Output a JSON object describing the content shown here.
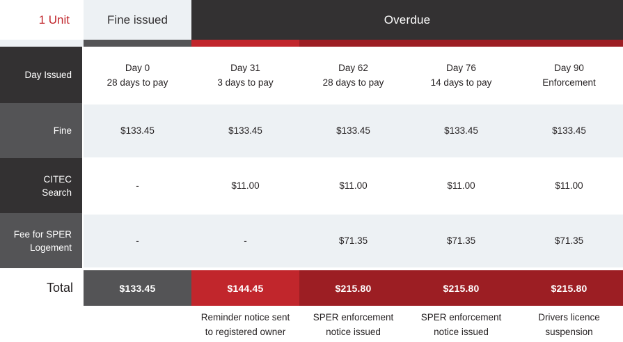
{
  "header": {
    "unit_label": "1 Unit",
    "fine_issued_label": "Fine issued",
    "overdue_label": "Overdue"
  },
  "row_headers": {
    "day": "Day Issued",
    "fine": "Fine",
    "citec": [
      "CITEC",
      "Search"
    ],
    "sper": [
      "Fee for SPER",
      "Logement"
    ],
    "total": "Total"
  },
  "columns": [
    {
      "day": "Day 0",
      "terms": "28 days to pay",
      "fine": "$133.45",
      "citec": "-",
      "sper": "-",
      "total": "$133.45"
    },
    {
      "day": "Day 31",
      "terms": "3 days to pay",
      "fine": "$133.45",
      "citec": "$11.00",
      "sper": "-",
      "total": "$144.45"
    },
    {
      "day": "Day 62",
      "terms": "28 days to pay",
      "fine": "$133.45",
      "citec": "$11.00",
      "sper": "$71.35",
      "total": "$215.80"
    },
    {
      "day": "Day 76",
      "terms": "14 days to pay",
      "fine": "$133.45",
      "citec": "$11.00",
      "sper": "$71.35",
      "total": "$215.80"
    },
    {
      "day": "Day 90",
      "terms": "Enforcement",
      "fine": "$133.45",
      "citec": "$11.00",
      "sper": "$71.35",
      "total": "$215.80"
    }
  ],
  "notes": [
    [
      "Reminder notice sent",
      "to registered owner"
    ],
    [
      "SPER enforcement",
      "notice issued"
    ],
    [
      "SPER enforcement",
      "notice issued"
    ],
    [
      "Drivers licence",
      "suspension"
    ]
  ],
  "colors": {
    "charcoal": "#333132",
    "mid_gray": "#545456",
    "light_gray": "#edf1f4",
    "red": "#c1262c",
    "dark_red": "#9c1e23",
    "text": "#231f20"
  },
  "chart_data": {
    "type": "table",
    "title": "1 Unit",
    "group_headers": [
      "Fine issued",
      "Overdue",
      "Overdue",
      "Overdue",
      "Overdue"
    ],
    "columns": [
      "Day 0 (28 days to pay)",
      "Day 31 (3 days to pay)",
      "Day 62 (28 days to pay)",
      "Day 76 (14 days to pay)",
      "Day 90 (Enforcement)"
    ],
    "rows": [
      {
        "label": "Fine",
        "values": [
          "$133.45",
          "$133.45",
          "$133.45",
          "$133.45",
          "$133.45"
        ]
      },
      {
        "label": "CITEC Search",
        "values": [
          "-",
          "$11.00",
          "$11.00",
          "$11.00",
          "$11.00"
        ]
      },
      {
        "label": "Fee for SPER Logement",
        "values": [
          "-",
          "-",
          "$71.35",
          "$71.35",
          "$71.35"
        ]
      },
      {
        "label": "Total",
        "values": [
          "$133.45",
          "$144.45",
          "$215.80",
          "$215.80",
          "$215.80"
        ]
      }
    ],
    "footnotes": [
      "",
      "Reminder notice sent to registered owner",
      "SPER enforcement notice issued",
      "SPER enforcement notice issued",
      "Drivers licence suspension"
    ],
    "legend_position": "none",
    "grid": false
  }
}
